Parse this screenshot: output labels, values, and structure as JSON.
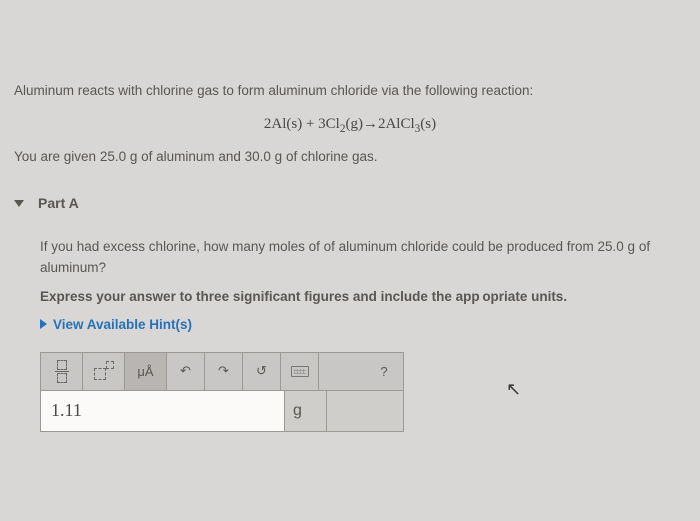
{
  "problem": {
    "intro": "Aluminum reacts with chlorine gas to form aluminum chloride via the following reaction:",
    "equation_html": "2Al(s) + 3Cl<sub>2</sub>(g)→2AlCl<sub>3</sub>(s)",
    "given": "You are given 25.0 g of aluminum and 30.0 g of chlorine gas."
  },
  "part": {
    "label": "Part A",
    "question": "If you had excess chlorine, how many moles of of aluminum chloride could be produced from 25.0 g of aluminum?",
    "instruction_html": "Express your answer to three significant figures and include the app<span>&#8239;</span>opriate units.",
    "hints_label": "View Available Hint(s)"
  },
  "toolbar": {
    "fraction_tool": "fraction",
    "superscript_tool": "superscript",
    "mu_a_label": "μÅ",
    "undo": "↶",
    "redo": "↷",
    "reset": "↺",
    "keyboard": "keyboard",
    "help": "?"
  },
  "answer": {
    "value": "1.11",
    "unit": "g"
  },
  "colors": {
    "background": "#d8d7d6",
    "text": "#5a5652",
    "link": "#2672b8",
    "box_bg": "#c9c7c5",
    "box_border": "#9c9894",
    "input_bg": "#fbfaf9"
  }
}
